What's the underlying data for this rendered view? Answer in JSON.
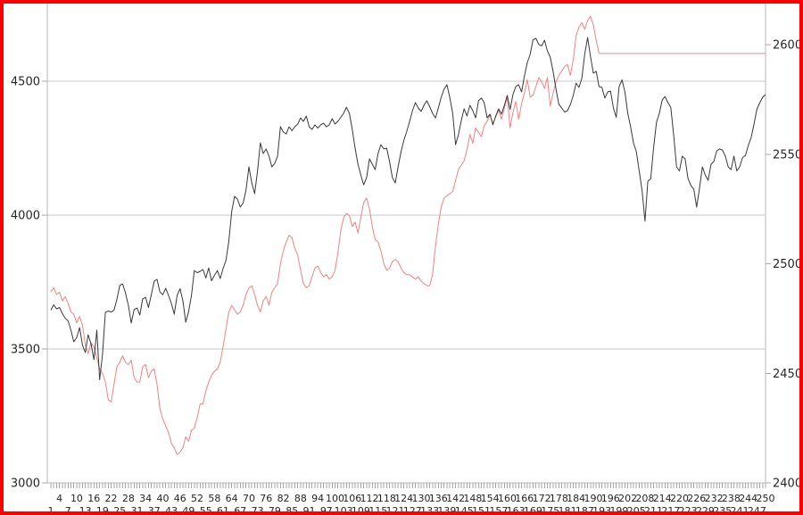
{
  "chart_data": {
    "type": "line",
    "title": "",
    "xlabel": "",
    "ylabel_left": "",
    "ylabel_right": "",
    "legend": "none",
    "grid": "horizontal-left-axis-only",
    "x": {
      "index_start": 1,
      "index_end": 250,
      "tick_label_row1": [
        4,
        10,
        16,
        22,
        28,
        34,
        40,
        46,
        52,
        58,
        64,
        70,
        76,
        82,
        88,
        94,
        100,
        106,
        112,
        118,
        124,
        130,
        136,
        142,
        148,
        154,
        160,
        166,
        172,
        178,
        184,
        190,
        196,
        202,
        208,
        214,
        220,
        226,
        232,
        238,
        244,
        250
      ],
      "tick_label_row2": [
        1,
        7,
        13,
        19,
        25,
        31,
        37,
        43,
        49,
        55,
        61,
        67,
        73,
        79,
        85,
        91,
        97,
        103,
        109,
        115,
        121,
        127,
        133,
        139,
        145,
        151,
        157,
        163,
        169,
        175,
        181,
        187,
        193,
        199,
        205,
        211,
        217,
        223,
        229,
        235,
        241,
        247
      ]
    },
    "left_axis": {
      "tick_labels": [
        "3000",
        "3500",
        "4000",
        "4500"
      ],
      "ticks": [
        3000,
        3500,
        4000,
        4500
      ],
      "gridlines": [
        3500,
        4000,
        4500
      ],
      "bottom_value": 3000,
      "top_value": 4790
    },
    "right_axis": {
      "tick_labels": [
        "2400",
        "2450",
        "2500",
        "2550",
        "2600"
      ],
      "ticks": [
        2400,
        2450,
        2500,
        2550,
        2600
      ],
      "bottom_value": 2400,
      "top_value": 2619
    },
    "series": [
      {
        "name": "black-series",
        "axis": "left",
        "color": "#3a3a3a",
        "x_from": 1,
        "values": [
          3645,
          3665,
          3650,
          3655,
          3632,
          3615,
          3605,
          3570,
          3527,
          3543,
          3580,
          3515,
          3487,
          3553,
          3520,
          3460,
          3570,
          3385,
          3480,
          3637,
          3642,
          3638,
          3645,
          3685,
          3737,
          3743,
          3710,
          3663,
          3597,
          3647,
          3653,
          3627,
          3687,
          3693,
          3655,
          3703,
          3753,
          3760,
          3713,
          3703,
          3727,
          3700,
          3670,
          3630,
          3700,
          3725,
          3680,
          3600,
          3640,
          3700,
          3793,
          3785,
          3790,
          3797,
          3765,
          3803,
          3755,
          3775,
          3793,
          3763,
          3800,
          3830,
          3900,
          4013,
          4070,
          4060,
          4030,
          4045,
          4093,
          4180,
          4120,
          4080,
          4163,
          4270,
          4230,
          4247,
          4220,
          4180,
          4193,
          4220,
          4330,
          4310,
          4303,
          4330,
          4315,
          4330,
          4340,
          4363,
          4350,
          4370,
          4330,
          4320,
          4337,
          4325,
          4337,
          4343,
          4330,
          4337,
          4360,
          4340,
          4350,
          4365,
          4380,
          4403,
          4380,
          4320,
          4250,
          4190,
          4150,
          4113,
          4140,
          4210,
          4190,
          4170,
          4230,
          4263,
          4247,
          4250,
          4200,
          4140,
          4120,
          4180,
          4237,
          4280,
          4313,
          4350,
          4390,
          4420,
          4400,
          4387,
          4410,
          4427,
          4405,
          4380,
          4363,
          4400,
          4440,
          4470,
          4487,
          4440,
          4380,
          4263,
          4300,
          4353,
          4397,
          4370,
          4410,
          4390,
          4363,
          4427,
          4437,
          4420,
          4363,
          4377,
          4337,
          4370,
          4397,
          4377,
          4410,
          4447,
          4395,
          4450,
          4480,
          4487,
          4460,
          4520,
          4570,
          4600,
          4655,
          4660,
          4637,
          4632,
          4653,
          4613,
          4590,
          4535,
          4470,
          4413,
          4400,
          4385,
          4390,
          4413,
          4447,
          4493,
          4477,
          4510,
          4600,
          4663,
          4593,
          4530,
          4537,
          4480,
          4477,
          4437,
          4460,
          4463,
          4400,
          4365,
          4480,
          4505,
          4460,
          4380,
          4330,
          4270,
          4237,
          4163,
          4090,
          3977,
          4127,
          4135,
          4250,
          4347,
          4380,
          4430,
          4443,
          4420,
          4403,
          4297,
          4180,
          4165,
          4220,
          4210,
          4137,
          4110,
          4097,
          4030,
          4100,
          4180,
          4150,
          4130,
          4190,
          4200,
          4240,
          4247,
          4243,
          4220,
          4180,
          4170,
          4220,
          4165,
          4180,
          4215,
          4223,
          4260,
          4290,
          4340,
          4395,
          4420,
          4440,
          4450
        ]
      },
      {
        "name": "red-series",
        "axis": "right",
        "color": "#f28282",
        "x_from": 1,
        "values": [
          2487,
          2489,
          2486,
          2487,
          2483,
          2485,
          2482,
          2478,
          2477,
          2473,
          2476,
          2472,
          2463,
          2459,
          2464,
          2462,
          2457,
          2452,
          2450,
          2446,
          2438,
          2437,
          2445,
          2453,
          2455,
          2458,
          2455,
          2454,
          2456,
          2448,
          2446,
          2446,
          2453,
          2454,
          2448,
          2451,
          2452,
          2445,
          2434,
          2429,
          2426,
          2423,
          2418,
          2416,
          2413,
          2414,
          2416,
          2421,
          2419,
          2424,
          2425,
          2430,
          2436,
          2436,
          2442,
          2446,
          2449,
          2451,
          2452,
          2455,
          2462,
          2470,
          2478,
          2481,
          2479,
          2477,
          2478,
          2481,
          2486,
          2489,
          2490,
          2486,
          2481,
          2478,
          2483,
          2485,
          2481,
          2487,
          2489,
          2491,
          2500,
          2506,
          2510,
          2513,
          2512,
          2507,
          2504,
          2497,
          2491,
          2489,
          2490,
          2494,
          2498,
          2499,
          2496,
          2494,
          2495,
          2493,
          2494,
          2497,
          2505,
          2515,
          2521,
          2523,
          2522,
          2517,
          2519,
          2514,
          2521,
          2528,
          2530,
          2525,
          2517,
          2511,
          2510,
          2506,
          2500,
          2497,
          2498,
          2501,
          2502,
          2501,
          2498,
          2496,
          2495,
          2495,
          2494,
          2493,
          2494,
          2492,
          2491,
          2490,
          2490,
          2495,
          2508,
          2518,
          2526,
          2530,
          2531,
          2532,
          2533,
          2538,
          2543,
          2545,
          2547,
          2552,
          2559,
          2555,
          2562,
          2560,
          2558,
          2563,
          2565,
          2568,
          2564,
          2567,
          2570,
          2566,
          2571,
          2576,
          2562,
          2569,
          2574,
          2566,
          2573,
          2578,
          2584,
          2576,
          2577,
          2581,
          2585,
          2583,
          2580,
          2585,
          2572,
          2578,
          2583,
          2586,
          2588,
          2590,
          2591,
          2586,
          2593,
          2604,
          2608,
          2610,
          2607,
          2611,
          2613,
          2609,
          2602,
          2596
        ],
        "end_flat_line": {
          "value": 2596,
          "from_index": 192,
          "to_index": 250
        }
      }
    ],
    "colors": {
      "frame_border": "#fe0000",
      "gridline": "#c9c9c9",
      "axis_line": "#b9b9b9",
      "tick_mark": "#a8a8a8",
      "label_text": "#262626"
    }
  }
}
